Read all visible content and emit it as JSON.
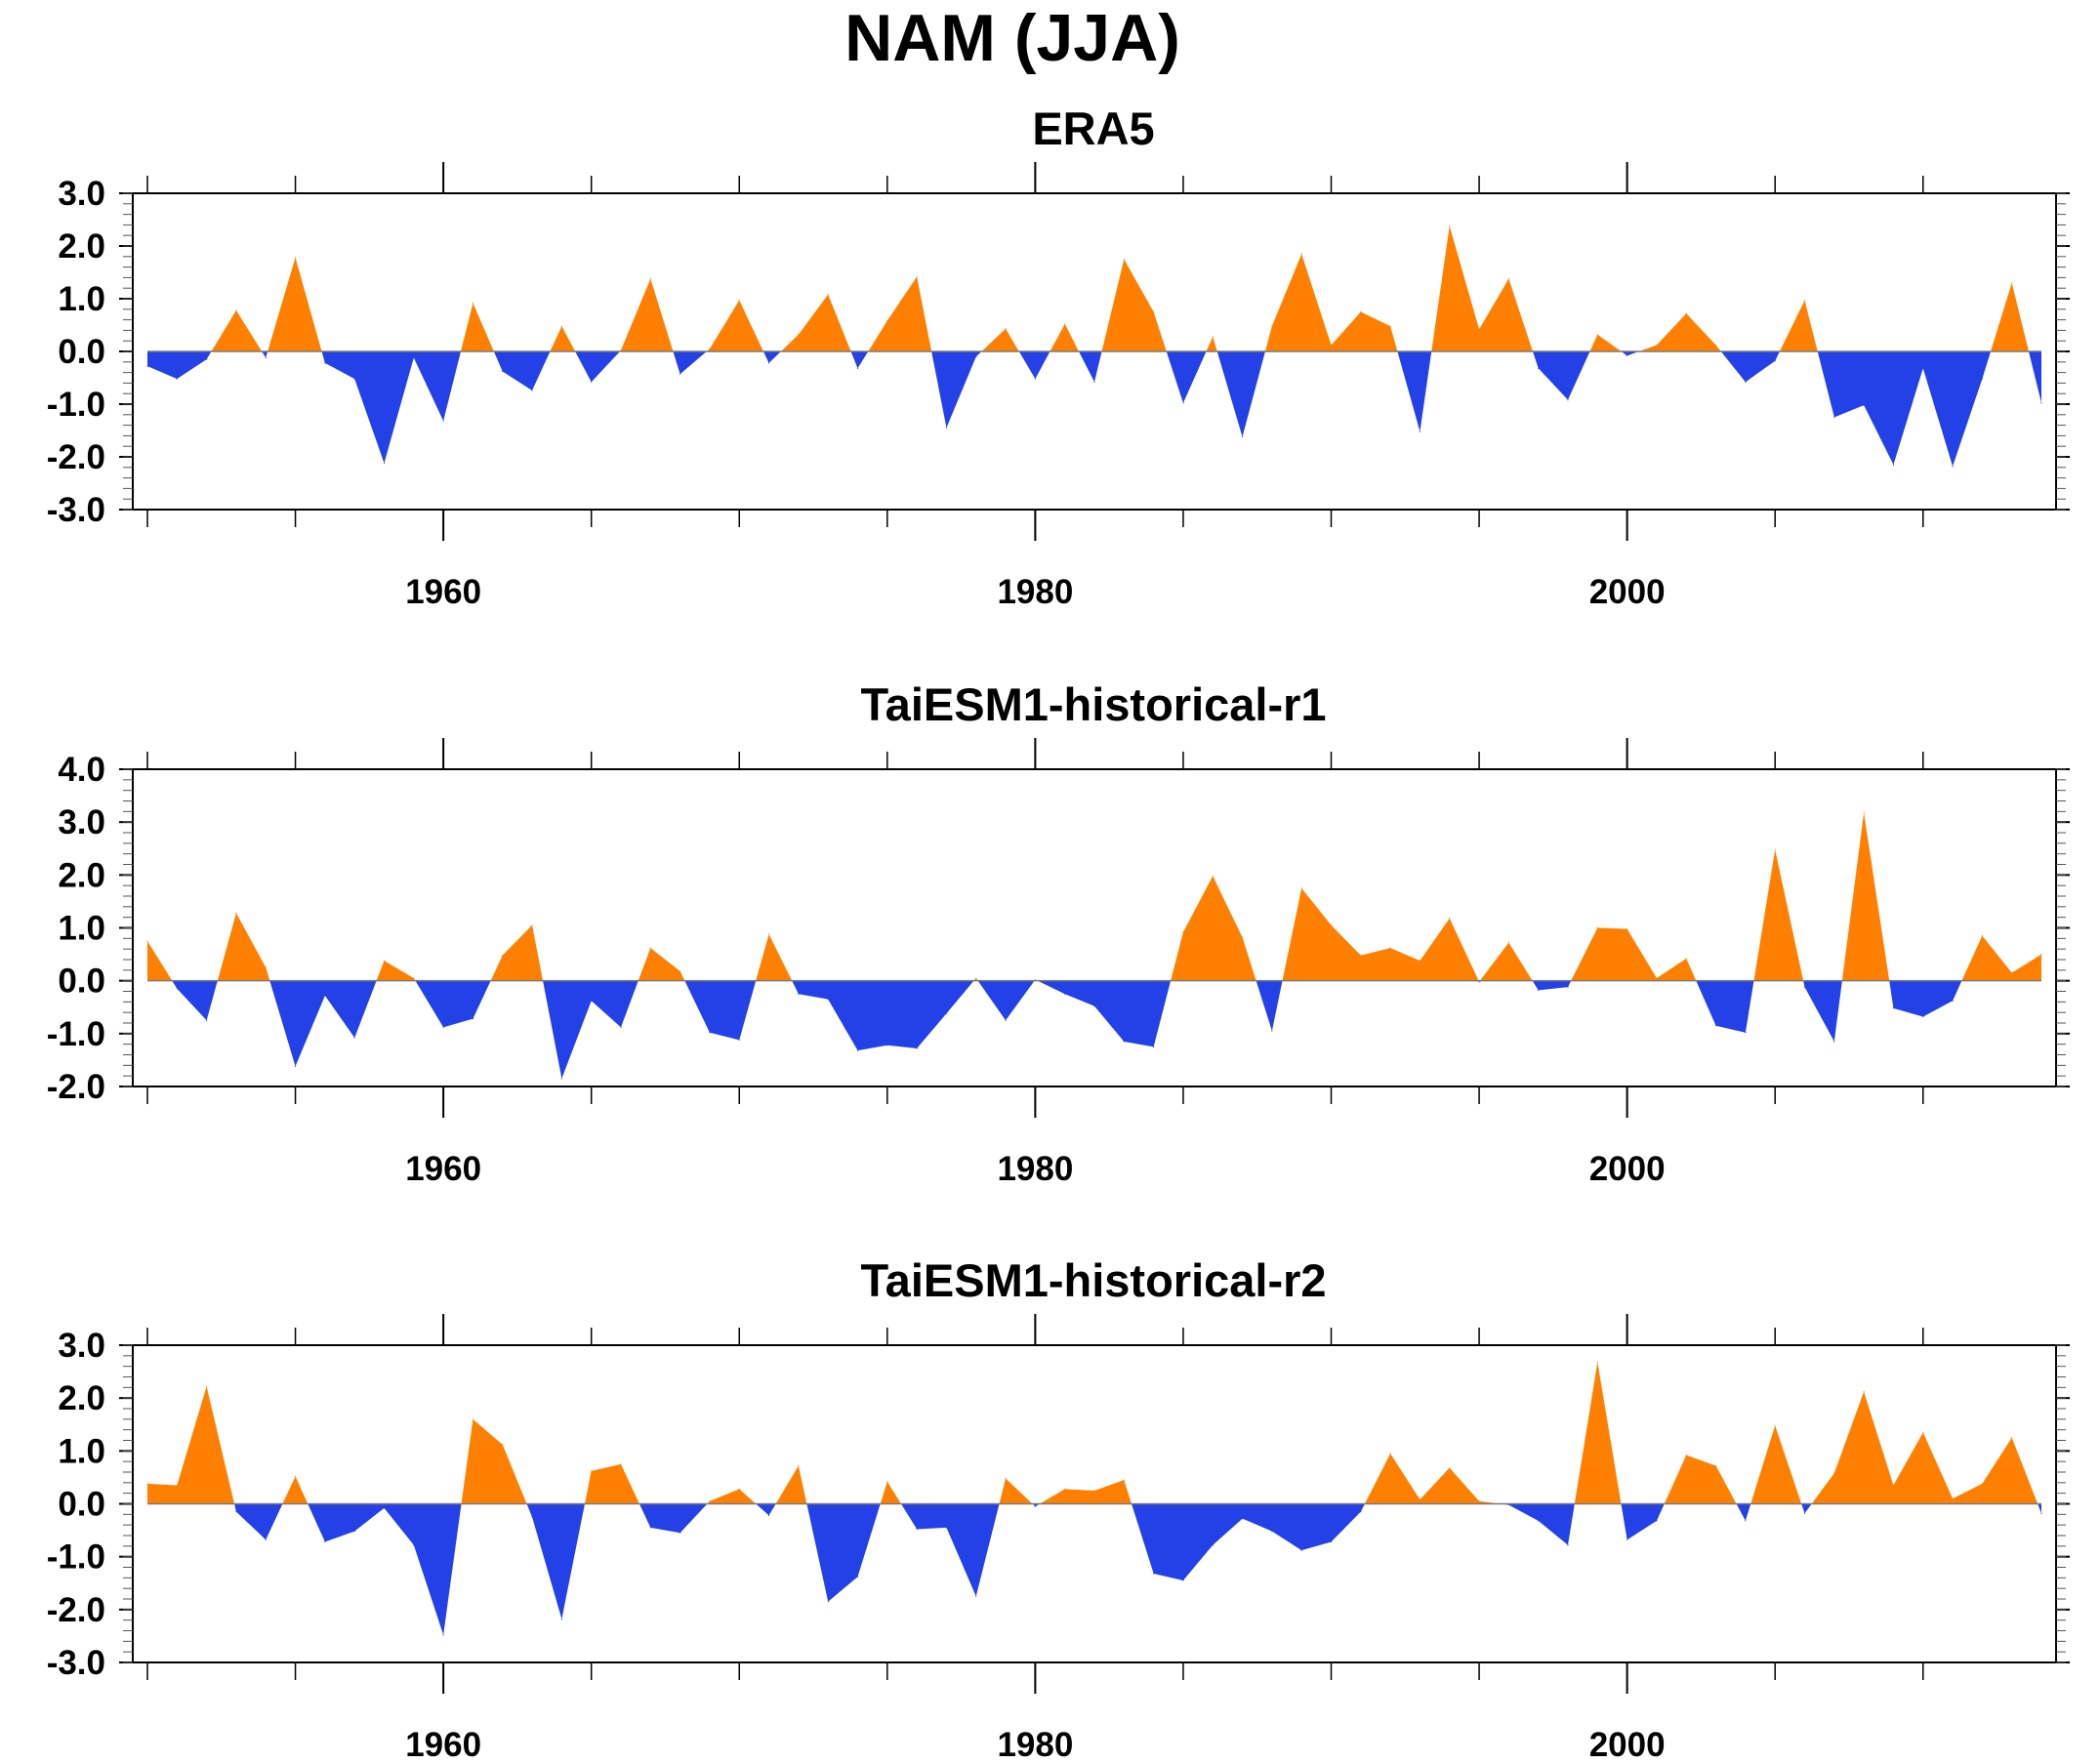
{
  "figure": {
    "title": "NAM (JJA)"
  },
  "colors": {
    "positive": "#ff8000",
    "negative": "#2441e8",
    "axis": "#000000"
  },
  "chart_data": [
    {
      "type": "area",
      "title": "ERA5",
      "xlabel": "",
      "ylabel": "",
      "xlim": [
        1950,
        2014
      ],
      "ylim": [
        -3.0,
        3.0
      ],
      "yticks": [
        -3.0,
        -2.0,
        -1.0,
        0.0,
        1.0,
        2.0,
        3.0
      ],
      "ytick_labels": [
        "-3.0",
        "-2.0",
        "-1.0",
        "0.0",
        "1.0",
        "2.0",
        "3.0"
      ],
      "xticks": [
        1960,
        1980,
        2000
      ],
      "xtick_labels": [
        "1960",
        "1980",
        "2000"
      ],
      "grid": false,
      "x": [
        1950,
        1951,
        1952,
        1953,
        1954,
        1955,
        1956,
        1957,
        1958,
        1959,
        1960,
        1961,
        1962,
        1963,
        1964,
        1965,
        1966,
        1967,
        1968,
        1969,
        1970,
        1971,
        1972,
        1973,
        1974,
        1975,
        1976,
        1977,
        1978,
        1979,
        1980,
        1981,
        1982,
        1983,
        1984,
        1985,
        1986,
        1987,
        1988,
        1989,
        1990,
        1991,
        1992,
        1993,
        1994,
        1995,
        1996,
        1997,
        1998,
        1999,
        2000,
        2001,
        2002,
        2003,
        2004,
        2005,
        2006,
        2007,
        2008,
        2009,
        2010,
        2011,
        2012,
        2013,
        2014
      ],
      "values": [
        -0.28,
        -0.52,
        -0.15,
        0.78,
        -0.12,
        1.78,
        -0.22,
        -0.52,
        -2.12,
        -0.12,
        -1.32,
        0.92,
        -0.38,
        -0.74,
        0.48,
        -0.58,
        0.02,
        1.38,
        -0.43,
        0.05,
        0.97,
        -0.22,
        0.32,
        1.08,
        -0.32,
        0.58,
        1.42,
        -1.45,
        -0.1,
        0.43,
        -0.52,
        0.52,
        -0.58,
        1.75,
        0.75,
        -0.98,
        0.28,
        -1.62,
        0.48,
        1.85,
        0.12,
        0.75,
        0.48,
        -1.52,
        2.38,
        0.42,
        1.38,
        -0.32,
        -0.92,
        0.32,
        -0.08,
        0.12,
        0.72,
        0.12,
        -0.58,
        -0.18,
        0.97,
        -1.25,
        -1.02,
        -2.15,
        -0.32,
        -2.18,
        -0.52,
        1.3,
        -0.98
      ]
    },
    {
      "type": "area",
      "title": "TaiESM1-historical-r1",
      "xlabel": "",
      "ylabel": "",
      "xlim": [
        1950,
        2014
      ],
      "ylim": [
        -2.0,
        4.0
      ],
      "yticks": [
        -2.0,
        -1.0,
        0.0,
        1.0,
        2.0,
        3.0,
        4.0
      ],
      "ytick_labels": [
        "-2.0",
        "-1.0",
        "0.0",
        "1.0",
        "2.0",
        "3.0",
        "4.0"
      ],
      "xticks": [
        1960,
        1980,
        2000
      ],
      "xtick_labels": [
        "1960",
        "1980",
        "2000"
      ],
      "grid": false,
      "x": [
        1950,
        1951,
        1952,
        1953,
        1954,
        1955,
        1956,
        1957,
        1958,
        1959,
        1960,
        1961,
        1962,
        1963,
        1964,
        1965,
        1966,
        1967,
        1968,
        1969,
        1970,
        1971,
        1972,
        1973,
        1974,
        1975,
        1976,
        1977,
        1978,
        1979,
        1980,
        1981,
        1982,
        1983,
        1984,
        1985,
        1986,
        1987,
        1988,
        1989,
        1990,
        1991,
        1992,
        1993,
        1994,
        1995,
        1996,
        1997,
        1998,
        1999,
        2000,
        2001,
        2002,
        2003,
        2004,
        2005,
        2006,
        2007,
        2008,
        2009,
        2010,
        2011,
        2012,
        2013,
        2014
      ],
      "values": [
        0.75,
        -0.15,
        -0.75,
        1.28,
        0.25,
        -1.62,
        -0.28,
        -1.08,
        0.38,
        0.05,
        -0.88,
        -0.72,
        0.48,
        1.05,
        -1.85,
        -0.38,
        -0.88,
        0.62,
        0.18,
        -0.98,
        -1.12,
        0.88,
        -0.25,
        -0.35,
        -1.32,
        -1.22,
        -1.28,
        -0.62,
        0.05,
        -0.75,
        0.02,
        -0.25,
        -0.48,
        -1.15,
        -1.25,
        0.92,
        1.98,
        0.82,
        -0.95,
        1.75,
        1.05,
        0.48,
        0.62,
        0.38,
        1.18,
        -0.02,
        0.72,
        -0.18,
        -0.12,
        1.0,
        0.98,
        0.05,
        0.42,
        -0.85,
        -0.98,
        2.48,
        -0.12,
        -1.15,
        3.18,
        -0.52,
        -0.68,
        -0.38,
        0.85,
        0.15,
        0.5
      ]
    },
    {
      "type": "area",
      "title": "TaiESM1-historical-r2",
      "xlabel": "",
      "ylabel": "",
      "xlim": [
        1950,
        2014
      ],
      "ylim": [
        -3.0,
        3.0
      ],
      "yticks": [
        -3.0,
        -2.0,
        -1.0,
        0.0,
        1.0,
        2.0,
        3.0
      ],
      "ytick_labels": [
        "-3.0",
        "-2.0",
        "-1.0",
        "0.0",
        "1.0",
        "2.0",
        "3.0"
      ],
      "xticks": [
        1960,
        1980,
        2000
      ],
      "xtick_labels": [
        "1960",
        "1980",
        "2000"
      ],
      "grid": false,
      "x": [
        1950,
        1951,
        1952,
        1953,
        1954,
        1955,
        1956,
        1957,
        1958,
        1959,
        1960,
        1961,
        1962,
        1963,
        1964,
        1965,
        1966,
        1967,
        1968,
        1969,
        1970,
        1971,
        1972,
        1973,
        1974,
        1975,
        1976,
        1977,
        1978,
        1979,
        1980,
        1981,
        1982,
        1983,
        1984,
        1985,
        1986,
        1987,
        1988,
        1989,
        1990,
        1991,
        1992,
        1993,
        1994,
        1995,
        1996,
        1997,
        1998,
        1999,
        2000,
        2001,
        2002,
        2003,
        2004,
        2005,
        2006,
        2007,
        2008,
        2009,
        2010,
        2011,
        2012,
        2013,
        2014
      ],
      "values": [
        0.38,
        0.35,
        2.22,
        -0.15,
        -0.68,
        0.52,
        -0.72,
        -0.52,
        -0.08,
        -0.78,
        -2.48,
        1.6,
        1.12,
        -0.25,
        -2.18,
        0.62,
        0.75,
        -0.45,
        -0.55,
        0.05,
        0.28,
        -0.22,
        0.72,
        -1.85,
        -1.38,
        0.42,
        -0.48,
        -0.45,
        -1.75,
        0.48,
        -0.05,
        0.28,
        0.25,
        0.45,
        -1.32,
        -1.45,
        -0.78,
        -0.28,
        -0.52,
        -0.88,
        -0.72,
        -0.15,
        0.95,
        0.08,
        0.68,
        0.05,
        -0.02,
        -0.32,
        -0.78,
        2.68,
        -0.68,
        -0.32,
        0.92,
        0.72,
        -0.32,
        1.48,
        -0.18,
        0.58,
        2.12,
        0.35,
        1.35,
        0.1,
        0.38,
        1.25,
        -0.18
      ]
    }
  ]
}
